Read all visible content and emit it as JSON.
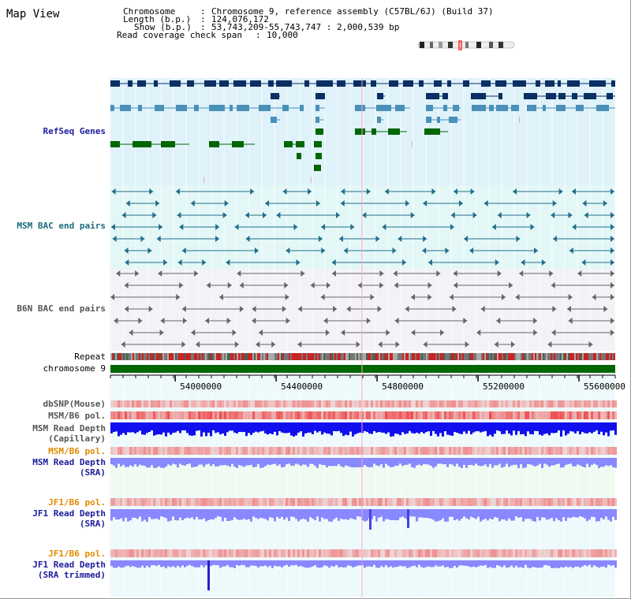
{
  "app": {
    "title": "Map View"
  },
  "info": {
    "chromosome_key": "Chromosome",
    "chromosome_val": "Chromosome 9, reference assembly (C57BL/6J) (Build 37)",
    "length_key": "Length (b.p.)",
    "length_val": "124,076,172",
    "show_key": "Show (b.p.)",
    "show_val": "53,743,209-55,743,747 : 2,000,539 bp",
    "span_key": "Read coverage check span",
    "span_val": "10,000"
  },
  "tracks": {
    "refseq": "RefSeq Genes",
    "msm_bac": "MSM BAC end pairs",
    "b6n_bac": "B6N BAC end pairs",
    "repeat": "Repeat",
    "chromosome": "chromosome 9",
    "dbsnp": "dbSNP(Mouse)",
    "msm_b6_pol": "MSM/B6 pol.",
    "msm_depth_cap": [
      "MSM Read Depth",
      "(Capillary)"
    ],
    "msm_b6_pol2": "MSM/B6 pol.",
    "msm_depth_sra": [
      "MSM Read Depth",
      "(SRA)"
    ],
    "jf1_b6_pol": "JF1/B6 pol.",
    "jf1_depth_sra": [
      "JF1 Read Depth",
      "(SRA)"
    ],
    "jf1_b6_pol2": "JF1/B6 pol.",
    "jf1_depth_trim": [
      "JF1 Read Depth",
      "(SRA trimmed)"
    ]
  },
  "axis": {
    "range_bp": [
      53743209,
      55743747
    ],
    "ticks": [
      54000000,
      54400000,
      54800000,
      55200000,
      55600000
    ],
    "tick_labels": [
      "54000000",
      "54400000",
      "54800000",
      "55200000",
      "55600000"
    ]
  },
  "colors": {
    "refseq_dark": "#0b2f63",
    "refseq_mid": "#4a90b8",
    "refseq_green": "#006600",
    "msm_line": "#226e8a",
    "b6n_line": "#666666",
    "chromosome_bar": "#006600",
    "depth_blue": "#1010ee",
    "depth_light": "#8888ff",
    "pol_red": "#ee4444"
  }
}
